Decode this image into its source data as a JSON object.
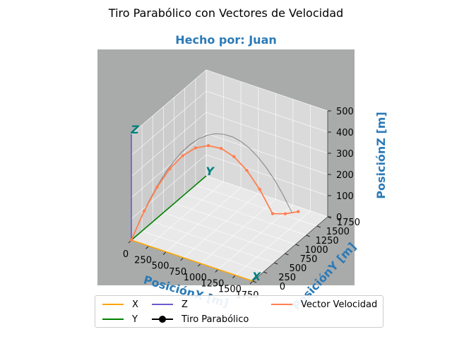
{
  "figure": {
    "suptitle": "Tiro Parabólico con Vectores de Velocidad",
    "title": "Hecho por: Juan",
    "title_color": "#2a7ab8",
    "pane_back_color": "#a9abaa"
  },
  "chart_data": {
    "type": "line",
    "projection": "3d",
    "xlabel": "PosiciónX [m]",
    "ylabel": "PosiciónY [m]",
    "zlabel": "PosiciónZ [m]",
    "axis_label_color": "#2a7ab8",
    "xlim": [
      0,
      1750
    ],
    "ylim": [
      0,
      1750
    ],
    "zlim": [
      0,
      500
    ],
    "xticks": [
      "0",
      "250",
      "500",
      "750",
      "1000",
      "1250",
      "1500",
      "1750"
    ],
    "yticks": [
      "0",
      "250",
      "500",
      "750",
      "1000",
      "1250",
      "1500",
      "1750"
    ],
    "zticks": [
      "0",
      "100",
      "200",
      "300",
      "400",
      "500"
    ],
    "grid": true,
    "legend_position": "lower center",
    "axis_markers": [
      {
        "label": "X",
        "color": "#ffa500",
        "end": [
          1750,
          0,
          0
        ]
      },
      {
        "label": "Y",
        "color": "#008000",
        "end": [
          0,
          1750,
          0
        ]
      },
      {
        "label": "Z",
        "color": "#6a5acd",
        "end": [
          0,
          0,
          500
        ]
      }
    ],
    "axis_marker_text_color": "#008080",
    "trajectory": {
      "name": "Tiro Parabólico",
      "color": "#000000",
      "x": [
        0,
        70,
        140,
        210,
        280,
        350,
        420,
        490,
        560,
        630,
        700,
        770,
        840,
        910,
        980,
        1050,
        1120,
        1190,
        1260,
        1330
      ],
      "y": [
        0,
        84,
        168,
        252,
        336,
        420,
        504,
        588,
        672,
        756,
        840,
        924,
        1008,
        1092,
        1176,
        1260,
        1344,
        1428,
        1512,
        1596
      ],
      "z": [
        0,
        87,
        164,
        231,
        289,
        337,
        376,
        405,
        424,
        434,
        434,
        424,
        405,
        376,
        337,
        289,
        231,
        164,
        87,
        0
      ]
    },
    "velocity_vectors": {
      "name": "Vector Velocidad",
      "color": "#ff7f50",
      "x": [
        0,
        106,
        213,
        319,
        425,
        531,
        638,
        744,
        850,
        956,
        1063,
        1169,
        1275,
        1382
      ],
      "y": [
        0,
        127,
        255,
        382,
        510,
        638,
        765,
        893,
        1020,
        1148,
        1275,
        1403,
        1530,
        1658
      ],
      "z": [
        0,
        127,
        229,
        306,
        357,
        383,
        384,
        360,
        311,
        236,
        136,
        11,
        -140,
        -316
      ]
    },
    "legend": [
      {
        "label": "X",
        "color": "#ffa500",
        "marker": false
      },
      {
        "label": "Z",
        "color": "#6a5acd",
        "marker": false
      },
      {
        "label": "Vector Velocidad",
        "color": "#ff7f50",
        "marker": false
      },
      {
        "label": "Y",
        "color": "#008000",
        "marker": false
      },
      {
        "label": "Tiro Parabólico",
        "color": "#000000",
        "marker": true
      }
    ]
  }
}
